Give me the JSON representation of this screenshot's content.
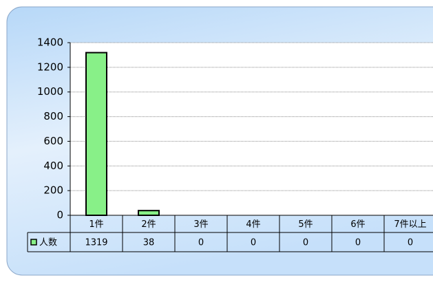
{
  "chart_data": {
    "type": "bar",
    "categories": [
      "1件",
      "2件",
      "3件",
      "4件",
      "5件",
      "6件",
      "7件以上"
    ],
    "series": [
      {
        "name": "人数",
        "color": "#88f088",
        "values": [
          1319,
          38,
          0,
          0,
          0,
          0,
          0
        ]
      }
    ],
    "ylim": [
      0,
      1400
    ],
    "yticks": [
      0,
      200,
      400,
      600,
      800,
      1000,
      1200,
      1400
    ],
    "grid": true
  }
}
